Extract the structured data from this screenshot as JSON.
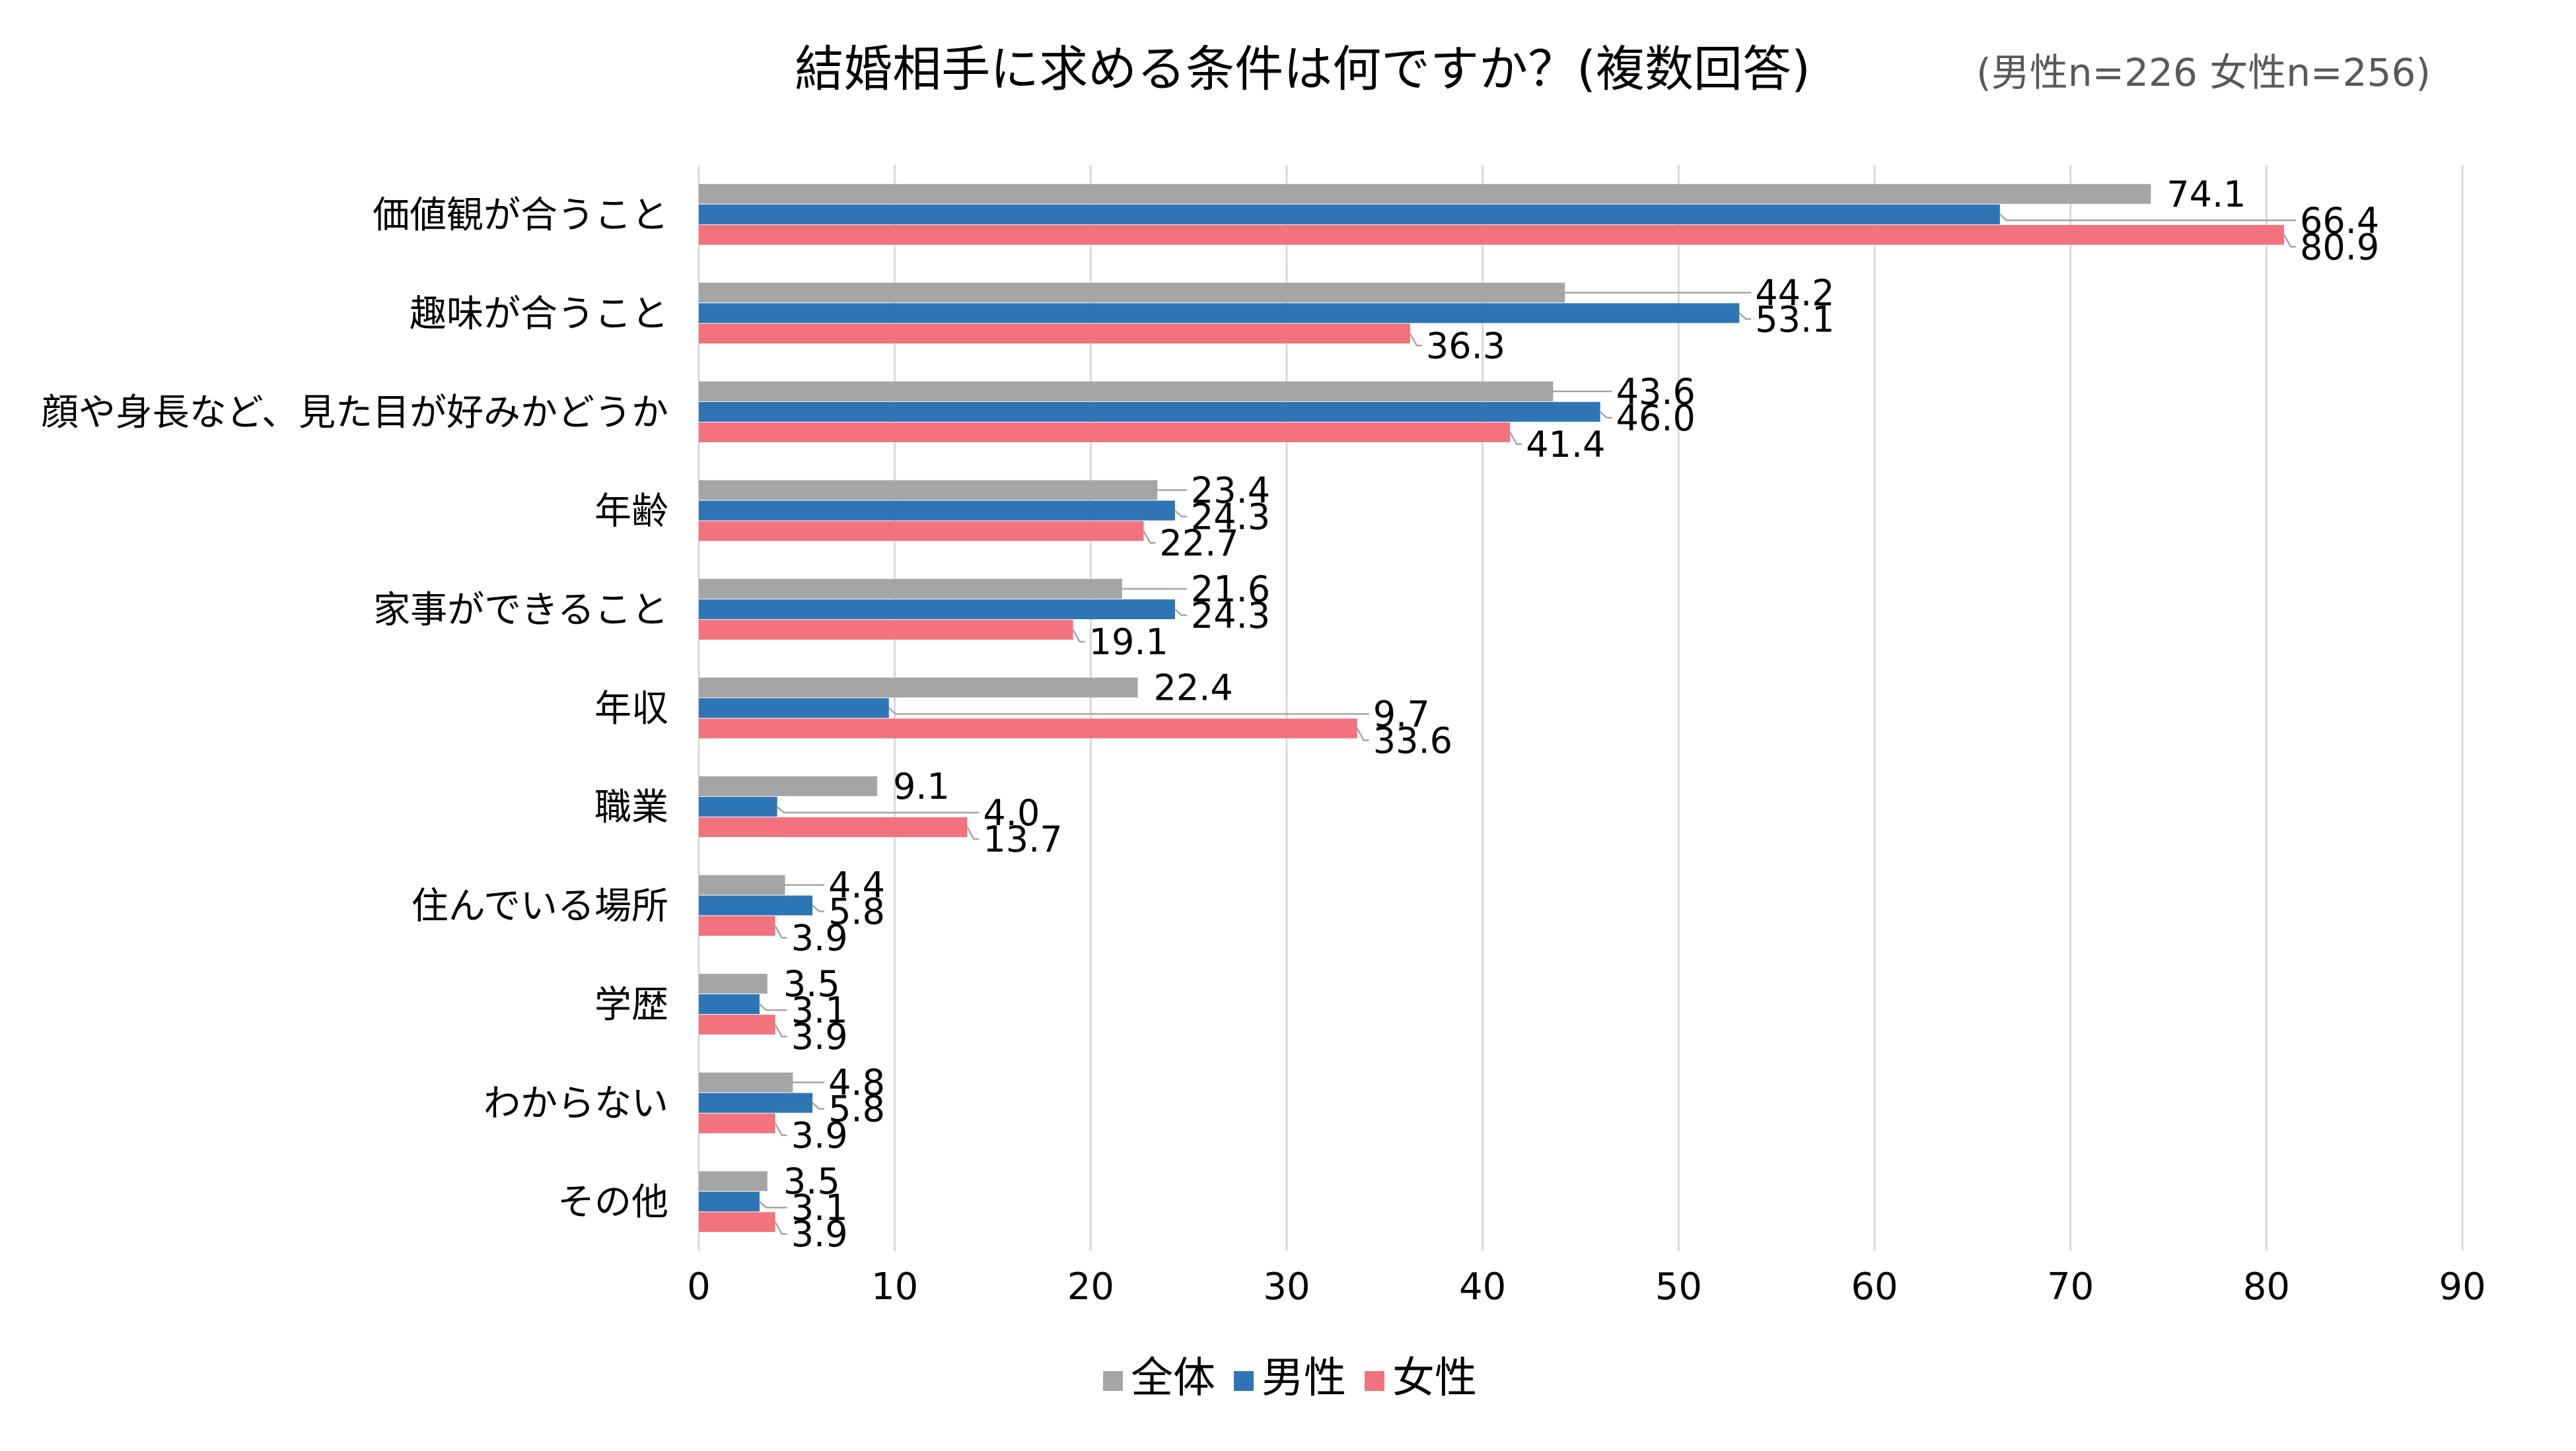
{
  "chart_data": {
    "type": "bar",
    "orientation": "horizontal",
    "title": "結婚相手に求める条件は何ですか？(複数回答)",
    "subtitle": "(男性n=226 女性n=256)",
    "xlabel": "",
    "ylabel": "",
    "xlim": [
      0,
      90
    ],
    "xticks": [
      0,
      10,
      20,
      30,
      40,
      50,
      60,
      70,
      80,
      90
    ],
    "xtick_labels": [
      "0",
      "10",
      "20",
      "30",
      "40",
      "50",
      "60",
      "70",
      "80",
      "90"
    ],
    "grid": true,
    "legend_position": "bottom",
    "categories": [
      "価値観が合うこと",
      "趣味が合うこと",
      "顔や身長など、見た目が好みかどうか",
      "年齢",
      "家事ができること",
      "年収",
      "職業",
      "住んでいる場所",
      "学歴",
      "わからない",
      "その他"
    ],
    "series": [
      {
        "name": "全体",
        "color": "#a5a5a5",
        "values": [
          74.1,
          44.2,
          43.6,
          23.4,
          21.6,
          22.4,
          9.1,
          4.4,
          3.5,
          4.8,
          3.5
        ],
        "labels": [
          "74.1",
          "44.2",
          "43.6",
          "23.4",
          "21.6",
          "22.4",
          "9.1",
          "4.4",
          "3.5",
          "4.8",
          "3.5"
        ]
      },
      {
        "name": "男性",
        "color": "#2e75b6",
        "values": [
          66.4,
          53.1,
          46.0,
          24.3,
          24.3,
          9.7,
          4.0,
          5.8,
          3.1,
          5.8,
          3.1
        ],
        "labels": [
          "66.4",
          "53.1",
          "46.0",
          "24.3",
          "24.3",
          "9.7",
          "4.0",
          "5.8",
          "3.1",
          "5.8",
          "3.1"
        ]
      },
      {
        "name": "女性",
        "color": "#f2737d",
        "values": [
          80.9,
          36.3,
          41.4,
          22.7,
          19.1,
          33.6,
          13.7,
          3.9,
          3.9,
          3.9,
          3.9
        ],
        "labels": [
          "80.9",
          "36.3",
          "41.4",
          "22.7",
          "19.1",
          "33.6",
          "13.7",
          "3.9",
          "3.9",
          "3.9",
          "3.9"
        ]
      }
    ]
  }
}
